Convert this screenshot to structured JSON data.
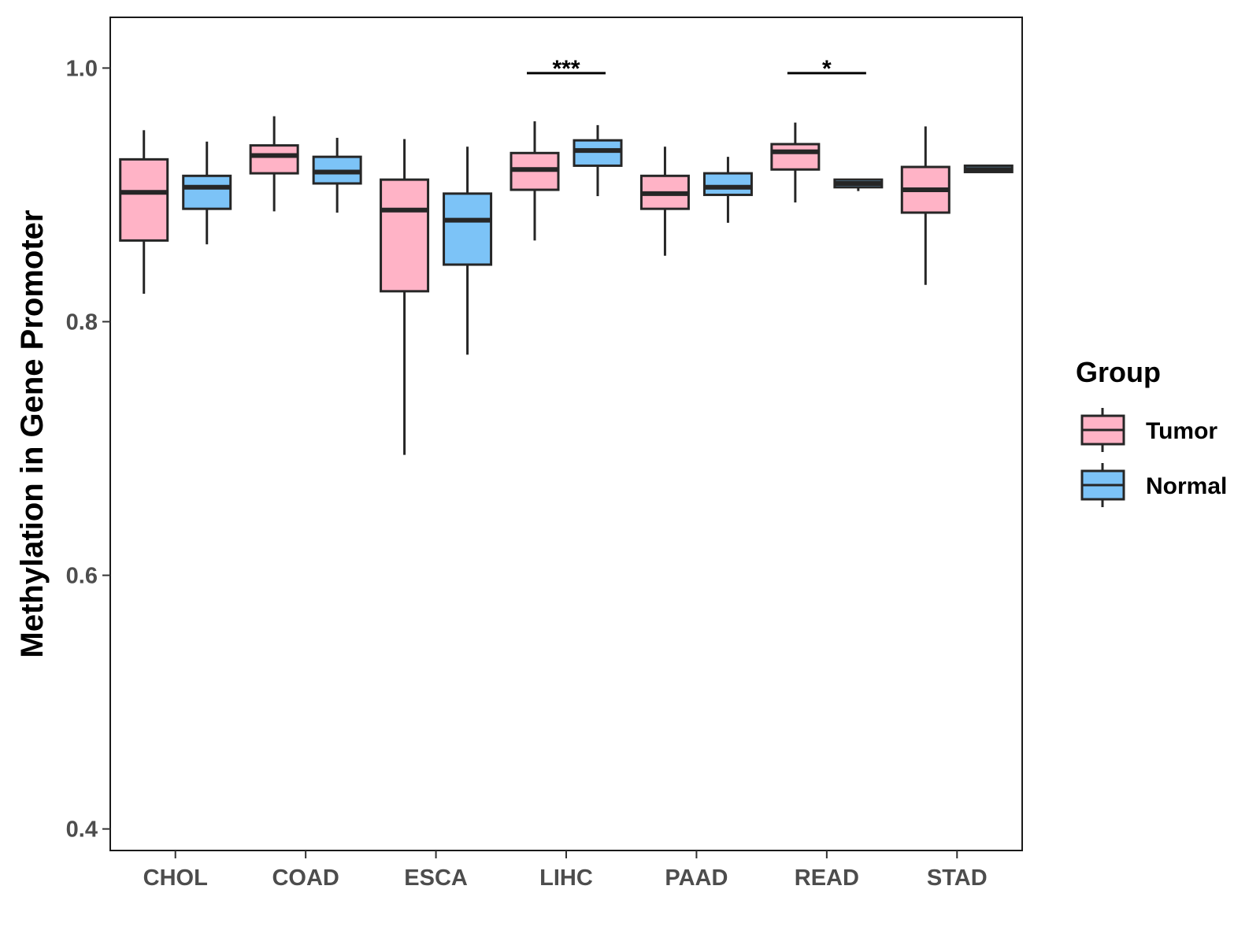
{
  "chart_data": {
    "type": "boxplot",
    "title": "",
    "xlabel": "",
    "ylabel": "Methylation in Gene Promoter",
    "ylim": [
      0.383,
      1.04
    ],
    "yticks": [
      0.4,
      0.6,
      0.8,
      1.0
    ],
    "ytick_labels": [
      "0.4",
      "0.6",
      "0.8",
      "1.0"
    ],
    "categories": [
      "CHOL",
      "COAD",
      "ESCA",
      "LIHC",
      "PAAD",
      "READ",
      "STAD"
    ],
    "legend": {
      "title": "Group",
      "placement": "right",
      "entries": [
        {
          "name": "Tumor",
          "color": "#FFB3C6"
        },
        {
          "name": "Normal",
          "color": "#7CC3F7"
        }
      ]
    },
    "series": [
      {
        "name": "Tumor",
        "color": "#FFB3C6",
        "boxes": [
          {
            "category": "CHOL",
            "whisker_low": 0.822,
            "q1": 0.864,
            "median": 0.902,
            "q3": 0.928,
            "whisker_high": 0.951
          },
          {
            "category": "COAD",
            "whisker_low": 0.887,
            "q1": 0.917,
            "median": 0.931,
            "q3": 0.939,
            "whisker_high": 0.962
          },
          {
            "category": "ESCA",
            "whisker_low": 0.695,
            "q1": 0.824,
            "median": 0.888,
            "q3": 0.912,
            "whisker_high": 0.944
          },
          {
            "category": "LIHC",
            "whisker_low": 0.864,
            "q1": 0.904,
            "median": 0.92,
            "q3": 0.933,
            "whisker_high": 0.958
          },
          {
            "category": "PAAD",
            "whisker_low": 0.852,
            "q1": 0.889,
            "median": 0.901,
            "q3": 0.915,
            "whisker_high": 0.938
          },
          {
            "category": "READ",
            "whisker_low": 0.894,
            "q1": 0.92,
            "median": 0.934,
            "q3": 0.94,
            "whisker_high": 0.957
          },
          {
            "category": "STAD",
            "whisker_low": 0.829,
            "q1": 0.886,
            "median": 0.904,
            "q3": 0.922,
            "whisker_high": 0.954
          }
        ]
      },
      {
        "name": "Normal",
        "color": "#7CC3F7",
        "boxes": [
          {
            "category": "CHOL",
            "whisker_low": 0.861,
            "q1": 0.889,
            "median": 0.906,
            "q3": 0.915,
            "whisker_high": 0.942
          },
          {
            "category": "COAD",
            "whisker_low": 0.886,
            "q1": 0.909,
            "median": 0.918,
            "q3": 0.93,
            "whisker_high": 0.945
          },
          {
            "category": "ESCA",
            "whisker_low": 0.774,
            "q1": 0.845,
            "median": 0.88,
            "q3": 0.901,
            "whisker_high": 0.938
          },
          {
            "category": "LIHC",
            "whisker_low": 0.899,
            "q1": 0.923,
            "median": 0.935,
            "q3": 0.943,
            "whisker_high": 0.955
          },
          {
            "category": "PAAD",
            "whisker_low": 0.878,
            "q1": 0.9,
            "median": 0.906,
            "q3": 0.917,
            "whisker_high": 0.93
          },
          {
            "category": "READ",
            "whisker_low": 0.903,
            "q1": 0.906,
            "median": 0.909,
            "q3": 0.912,
            "whisker_high": 0.912
          },
          {
            "category": "STAD",
            "whisker_low": 0.918,
            "q1": 0.918,
            "median": 0.92,
            "q3": 0.923,
            "whisker_high": 0.923
          }
        ]
      }
    ],
    "annotations": [
      {
        "category": "LIHC",
        "text": "***",
        "y": 0.996
      },
      {
        "category": "READ",
        "text": "*",
        "y": 0.996
      }
    ],
    "grid": false
  }
}
